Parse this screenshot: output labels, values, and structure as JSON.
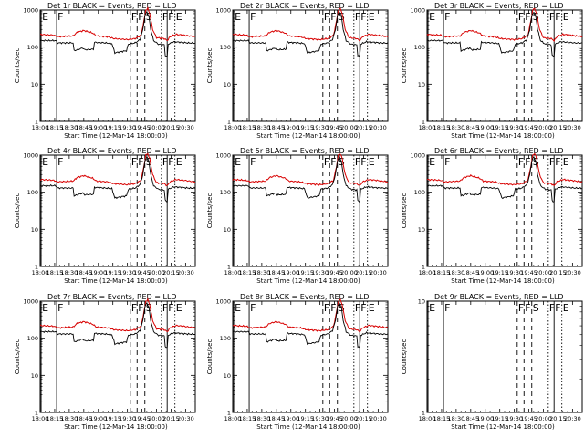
{
  "chart_data": {
    "type": "line",
    "panel_count": 9,
    "layout": "3x3 grid",
    "ylabel": "Counts/sec",
    "xlabel": "Start Time (12-Mar-14 18:00:00)",
    "y_scale": "log",
    "ylim": [
      1,
      1000
    ],
    "y_ticks": [
      "1",
      "10",
      "100",
      "1000"
    ],
    "xlim": [
      0,
      160
    ],
    "x_ticks": [
      {
        "minute": 0,
        "label": "18:00"
      },
      {
        "minute": 15,
        "label": "18:15"
      },
      {
        "minute": 30,
        "label": "18:30"
      },
      {
        "minute": 45,
        "label": "18:45"
      },
      {
        "minute": 60,
        "label": "19:00"
      },
      {
        "minute": 75,
        "label": "19:15"
      },
      {
        "minute": 90,
        "label": "19:30"
      },
      {
        "minute": 105,
        "label": "19:45"
      },
      {
        "minute": 120,
        "label": "20:00"
      },
      {
        "minute": 135,
        "label": "20:15"
      },
      {
        "minute": 150,
        "label": "20:30"
      }
    ],
    "series_legend": "BLACK = Events, RED = LLD",
    "events_color": "#000000",
    "lld_color": "#d80000",
    "markers": [
      {
        "label": "E",
        "minute": 1,
        "line": "solid"
      },
      {
        "label": "F",
        "minute": 17,
        "line": "solid"
      },
      {
        "label": "F",
        "minute": 93,
        "line": "dashed"
      },
      {
        "label": "S",
        "minute": 108,
        "line": "dashed"
      },
      {
        "label": "F",
        "minute": 131,
        "line": "solid"
      },
      {
        "label": "E",
        "minute": 139,
        "line": "dotted"
      },
      {
        "label": "F",
        "minute": 100,
        "line": "dashed"
      },
      {
        "label": "F",
        "minute": 125,
        "line": "dotted"
      }
    ],
    "events_profile": [
      [
        0,
        150
      ],
      [
        16,
        150
      ],
      [
        18,
        130
      ],
      [
        34,
        130
      ],
      [
        35,
        80
      ],
      [
        44,
        95
      ],
      [
        46,
        85
      ],
      [
        55,
        88
      ],
      [
        56,
        135
      ],
      [
        67,
        130
      ],
      [
        74,
        125
      ],
      [
        77,
        70
      ],
      [
        89,
        80
      ],
      [
        91,
        120
      ],
      [
        98,
        130
      ],
      [
        103,
        160
      ],
      [
        106,
        300
      ],
      [
        108,
        700
      ],
      [
        110,
        900
      ],
      [
        112,
        700
      ],
      [
        114,
        300
      ],
      [
        117,
        150
      ],
      [
        122,
        120
      ],
      [
        128,
        115
      ],
      [
        129,
        60
      ],
      [
        131,
        55
      ],
      [
        132,
        120
      ],
      [
        138,
        140
      ],
      [
        145,
        135
      ],
      [
        152,
        130
      ],
      [
        160,
        128
      ]
    ],
    "lld_profile": [
      [
        0,
        220
      ],
      [
        14,
        210
      ],
      [
        18,
        190
      ],
      [
        34,
        200
      ],
      [
        38,
        250
      ],
      [
        45,
        280
      ],
      [
        54,
        240
      ],
      [
        58,
        200
      ],
      [
        70,
        190
      ],
      [
        76,
        170
      ],
      [
        90,
        160
      ],
      [
        98,
        170
      ],
      [
        104,
        210
      ],
      [
        107,
        500
      ],
      [
        109,
        1000
      ],
      [
        111,
        1100
      ],
      [
        113,
        800
      ],
      [
        116,
        300
      ],
      [
        120,
        180
      ],
      [
        128,
        170
      ],
      [
        131,
        150
      ],
      [
        134,
        190
      ],
      [
        140,
        220
      ],
      [
        148,
        210
      ],
      [
        160,
        190
      ]
    ],
    "panels": [
      {
        "title": "Det 1r BLACK = Events, RED = LLD",
        "ylim": [
          1,
          1000
        ],
        "has_data": true
      },
      {
        "title": "Det 2r BLACK = Events, RED = LLD",
        "ylim": [
          1,
          1000
        ],
        "has_data": true
      },
      {
        "title": "Det 3r BLACK = Events, RED = LLD",
        "ylim": [
          1,
          1000
        ],
        "has_data": true
      },
      {
        "title": "Det 4r BLACK = Events, RED = LLD",
        "ylim": [
          1,
          1000
        ],
        "has_data": true
      },
      {
        "title": "Det 5r BLACK = Events, RED = LLD",
        "ylim": [
          1,
          1000
        ],
        "has_data": true
      },
      {
        "title": "Det 6r BLACK = Events, RED = LLD",
        "ylim": [
          1,
          1000
        ],
        "has_data": true
      },
      {
        "title": "Det 7r BLACK = Events, RED = LLD",
        "ylim": [
          1,
          1000
        ],
        "has_data": true
      },
      {
        "title": "Det 8r BLACK = Events, RED = LLD",
        "ylim": [
          1,
          1000
        ],
        "has_data": true
      },
      {
        "title": "Det 9r BLACK = Events, RED = LLD",
        "ylim": [
          1,
          10
        ],
        "has_data": false
      }
    ]
  }
}
